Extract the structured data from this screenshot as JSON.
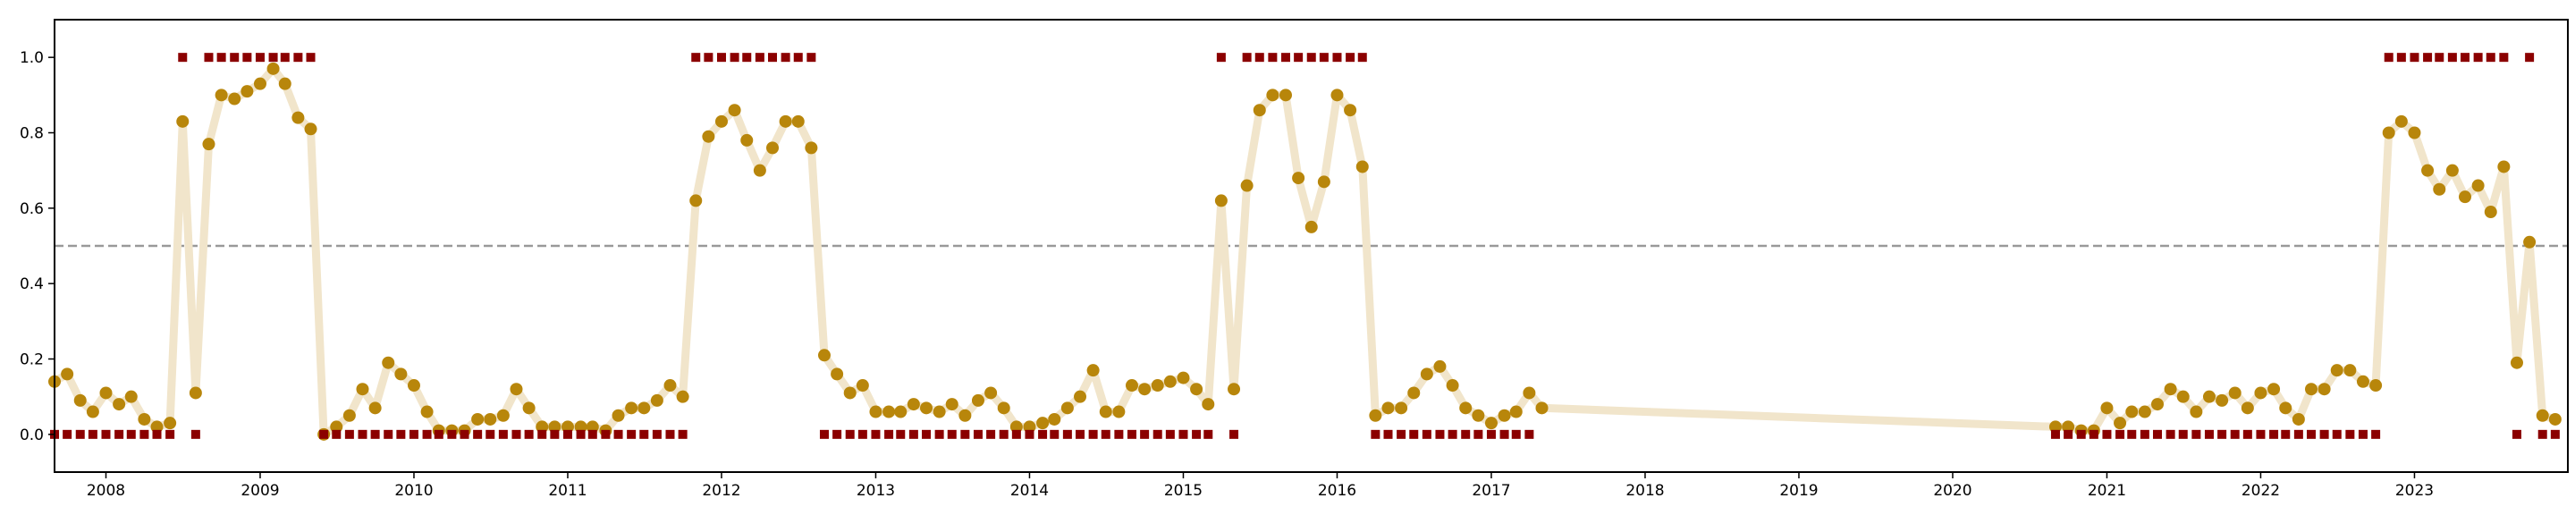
{
  "chart_data": {
    "type": "scatter",
    "title": "",
    "xlabel": "",
    "ylabel": "",
    "x_axis": "date",
    "xlim": [
      "2007-09-01",
      "2023-12-31"
    ],
    "ylim": [
      -0.1,
      1.1
    ],
    "y_ticks": [
      0.0,
      0.2,
      0.4,
      0.6,
      0.8,
      1.0
    ],
    "y_tick_labels": [
      "0.0",
      "0.2",
      "0.4",
      "0.6",
      "0.8",
      "1.0"
    ],
    "x_tick_labels": [
      "2008",
      "2009",
      "2010",
      "2011",
      "2012",
      "2013",
      "2014",
      "2015",
      "2016",
      "2017",
      "2018",
      "2019",
      "2020",
      "2021",
      "2022",
      "2023"
    ],
    "threshold": 0.5,
    "grid": false,
    "legend": "none",
    "colors": {
      "probability_line": "#f1e5cb",
      "probability_points": "#b8860b",
      "label_markers": "#8b0000",
      "threshold_line": "#999999",
      "axes": "#000000"
    },
    "series": [
      {
        "role": "probability",
        "style": "line-and-points",
        "x": [
          "2007-09-01",
          "2007-10-01",
          "2007-11-01",
          "2007-12-01",
          "2008-01-01",
          "2008-02-01",
          "2008-03-01",
          "2008-04-01",
          "2008-05-01",
          "2008-06-01",
          "2008-07-01",
          "2008-08-01",
          "2008-09-01",
          "2008-10-01",
          "2008-11-01",
          "2008-12-01",
          "2009-01-01",
          "2009-02-01",
          "2009-03-01",
          "2009-04-01",
          "2009-05-01",
          "2009-06-01",
          "2009-07-01",
          "2009-08-01",
          "2009-09-01",
          "2009-10-01",
          "2009-11-01",
          "2009-12-01",
          "2010-01-01",
          "2010-02-01",
          "2010-03-01",
          "2010-04-01",
          "2010-05-01",
          "2010-06-01",
          "2010-07-01",
          "2010-08-01",
          "2010-09-01",
          "2010-10-01",
          "2010-11-01",
          "2010-12-01",
          "2011-01-01",
          "2011-02-01",
          "2011-03-01",
          "2011-04-01",
          "2011-05-01",
          "2011-06-01",
          "2011-07-01",
          "2011-08-01",
          "2011-09-01",
          "2011-10-01",
          "2011-11-01",
          "2011-12-01",
          "2012-01-01",
          "2012-02-01",
          "2012-03-01",
          "2012-04-01",
          "2012-05-01",
          "2012-06-01",
          "2012-07-01",
          "2012-08-01",
          "2012-09-01",
          "2012-10-01",
          "2012-11-01",
          "2012-12-01",
          "2013-01-01",
          "2013-02-01",
          "2013-03-01",
          "2013-04-01",
          "2013-05-01",
          "2013-06-01",
          "2013-07-01",
          "2013-08-01",
          "2013-09-01",
          "2013-10-01",
          "2013-11-01",
          "2013-12-01",
          "2014-01-01",
          "2014-02-01",
          "2014-03-01",
          "2014-04-01",
          "2014-05-01",
          "2014-06-01",
          "2014-07-01",
          "2014-08-01",
          "2014-09-01",
          "2014-10-01",
          "2014-11-01",
          "2014-12-01",
          "2015-01-01",
          "2015-02-01",
          "2015-03-01",
          "2015-04-01",
          "2015-05-01",
          "2015-06-01",
          "2015-07-01",
          "2015-08-01",
          "2015-09-01",
          "2015-10-01",
          "2015-11-01",
          "2015-12-01",
          "2016-01-01",
          "2016-02-01",
          "2016-03-01",
          "2016-04-01",
          "2016-05-01",
          "2016-06-01",
          "2016-07-01",
          "2016-08-01",
          "2016-09-01",
          "2016-10-01",
          "2016-11-01",
          "2016-12-01",
          "2017-01-01",
          "2017-02-01",
          "2017-03-01",
          "2017-04-01",
          "2017-05-01",
          "2020-09-01",
          "2020-10-01",
          "2020-11-01",
          "2020-12-01",
          "2021-01-01",
          "2021-02-01",
          "2021-03-01",
          "2021-04-01",
          "2021-05-01",
          "2021-06-01",
          "2021-07-01",
          "2021-08-01",
          "2021-09-01",
          "2021-10-01",
          "2021-11-01",
          "2021-12-01",
          "2022-01-01",
          "2022-02-01",
          "2022-03-01",
          "2022-04-01",
          "2022-05-01",
          "2022-06-01",
          "2022-07-01",
          "2022-08-01",
          "2022-09-01",
          "2022-10-01",
          "2022-11-01",
          "2022-12-01",
          "2023-01-01",
          "2023-02-01",
          "2023-03-01",
          "2023-04-01",
          "2023-05-01",
          "2023-06-01",
          "2023-07-01",
          "2023-08-01",
          "2023-09-01",
          "2023-10-01",
          "2023-11-01",
          "2023-12-01"
        ],
        "y": [
          0.14,
          0.16,
          0.09,
          0.06,
          0.11,
          0.08,
          0.1,
          0.04,
          0.02,
          0.03,
          0.83,
          0.11,
          0.77,
          0.9,
          0.89,
          0.91,
          0.93,
          0.97,
          0.93,
          0.84,
          0.81,
          0.0,
          0.02,
          0.05,
          0.12,
          0.07,
          0.19,
          0.16,
          0.13,
          0.06,
          0.01,
          0.01,
          0.01,
          0.04,
          0.04,
          0.05,
          0.12,
          0.07,
          0.02,
          0.02,
          0.02,
          0.02,
          0.02,
          0.01,
          0.05,
          0.07,
          0.07,
          0.09,
          0.13,
          0.1,
          0.62,
          0.79,
          0.83,
          0.86,
          0.78,
          0.7,
          0.76,
          0.83,
          0.83,
          0.76,
          0.21,
          0.16,
          0.11,
          0.13,
          0.06,
          0.06,
          0.06,
          0.08,
          0.07,
          0.06,
          0.08,
          0.05,
          0.09,
          0.11,
          0.07,
          0.02,
          0.02,
          0.03,
          0.04,
          0.07,
          0.1,
          0.17,
          0.06,
          0.06,
          0.13,
          0.12,
          0.13,
          0.14,
          0.15,
          0.12,
          0.08,
          0.62,
          0.12,
          0.66,
          0.86,
          0.9,
          0.9,
          0.68,
          0.55,
          0.67,
          0.9,
          0.86,
          0.71,
          0.05,
          0.07,
          0.07,
          0.11,
          0.16,
          0.18,
          0.13,
          0.07,
          0.05,
          0.03,
          0.05,
          0.06,
          0.11,
          0.07,
          0.02,
          0.02,
          0.01,
          0.01,
          0.07,
          0.03,
          0.06,
          0.06,
          0.08,
          0.12,
          0.1,
          0.06,
          0.1,
          0.09,
          0.11,
          0.07,
          0.11,
          0.12,
          0.07,
          0.04,
          0.12,
          0.12,
          0.17,
          0.17,
          0.14,
          0.13,
          0.8,
          0.83,
          0.8,
          0.7,
          0.65,
          0.7,
          0.63,
          0.66,
          0.59,
          0.71,
          0.19,
          0.51,
          0.05,
          0.04
        ]
      },
      {
        "role": "label",
        "style": "square-markers",
        "x": [
          "2007-09-01",
          "2007-10-01",
          "2007-11-01",
          "2007-12-01",
          "2008-01-01",
          "2008-02-01",
          "2008-03-01",
          "2008-04-01",
          "2008-05-01",
          "2008-06-01",
          "2008-07-01",
          "2008-08-01",
          "2008-09-01",
          "2008-10-01",
          "2008-11-01",
          "2008-12-01",
          "2009-01-01",
          "2009-02-01",
          "2009-03-01",
          "2009-04-01",
          "2009-05-01",
          "2009-06-01",
          "2009-07-01",
          "2009-08-01",
          "2009-09-01",
          "2009-10-01",
          "2009-11-01",
          "2009-12-01",
          "2010-01-01",
          "2010-02-01",
          "2010-03-01",
          "2010-04-01",
          "2010-05-01",
          "2010-06-01",
          "2010-07-01",
          "2010-08-01",
          "2010-09-01",
          "2010-10-01",
          "2010-11-01",
          "2010-12-01",
          "2011-01-01",
          "2011-02-01",
          "2011-03-01",
          "2011-04-01",
          "2011-05-01",
          "2011-06-01",
          "2011-07-01",
          "2011-08-01",
          "2011-09-01",
          "2011-10-01",
          "2011-11-01",
          "2011-12-01",
          "2012-01-01",
          "2012-02-01",
          "2012-03-01",
          "2012-04-01",
          "2012-05-01",
          "2012-06-01",
          "2012-07-01",
          "2012-08-01",
          "2012-09-01",
          "2012-10-01",
          "2012-11-01",
          "2012-12-01",
          "2013-01-01",
          "2013-02-01",
          "2013-03-01",
          "2013-04-01",
          "2013-05-01",
          "2013-06-01",
          "2013-07-01",
          "2013-08-01",
          "2013-09-01",
          "2013-10-01",
          "2013-11-01",
          "2013-12-01",
          "2014-01-01",
          "2014-02-01",
          "2014-03-01",
          "2014-04-01",
          "2014-05-01",
          "2014-06-01",
          "2014-07-01",
          "2014-08-01",
          "2014-09-01",
          "2014-10-01",
          "2014-11-01",
          "2014-12-01",
          "2015-01-01",
          "2015-02-01",
          "2015-03-01",
          "2015-04-01",
          "2015-05-01",
          "2015-06-01",
          "2015-07-01",
          "2015-08-01",
          "2015-09-01",
          "2015-10-01",
          "2015-11-01",
          "2015-12-01",
          "2016-01-01",
          "2016-02-01",
          "2016-03-01",
          "2016-04-01",
          "2016-05-01",
          "2016-06-01",
          "2016-07-01",
          "2016-08-01",
          "2016-09-01",
          "2016-10-01",
          "2016-11-01",
          "2016-12-01",
          "2017-01-01",
          "2017-02-01",
          "2017-03-01",
          "2017-04-01",
          "2020-09-01",
          "2020-10-01",
          "2020-11-01",
          "2020-12-01",
          "2021-01-01",
          "2021-02-01",
          "2021-03-01",
          "2021-04-01",
          "2021-05-01",
          "2021-06-01",
          "2021-07-01",
          "2021-08-01",
          "2021-09-01",
          "2021-10-01",
          "2021-11-01",
          "2021-12-01",
          "2022-01-01",
          "2022-02-01",
          "2022-03-01",
          "2022-04-01",
          "2022-05-01",
          "2022-06-01",
          "2022-07-01",
          "2022-08-01",
          "2022-09-01",
          "2022-10-01",
          "2022-11-01",
          "2022-12-01",
          "2023-01-01",
          "2023-02-01",
          "2023-03-01",
          "2023-04-01",
          "2023-05-01",
          "2023-06-01",
          "2023-07-01",
          "2023-08-01",
          "2023-09-01",
          "2023-10-01",
          "2023-11-01",
          "2023-12-01"
        ],
        "y": [
          0,
          0,
          0,
          0,
          0,
          0,
          0,
          0,
          0,
          0,
          1,
          0,
          1,
          1,
          1,
          1,
          1,
          1,
          1,
          1,
          1,
          0,
          0,
          0,
          0,
          0,
          0,
          0,
          0,
          0,
          0,
          0,
          0,
          0,
          0,
          0,
          0,
          0,
          0,
          0,
          0,
          0,
          0,
          0,
          0,
          0,
          0,
          0,
          0,
          0,
          1,
          1,
          1,
          1,
          1,
          1,
          1,
          1,
          1,
          1,
          0,
          0,
          0,
          0,
          0,
          0,
          0,
          0,
          0,
          0,
          0,
          0,
          0,
          0,
          0,
          0,
          0,
          0,
          0,
          0,
          0,
          0,
          0,
          0,
          0,
          0,
          0,
          0,
          0,
          0,
          0,
          1,
          0,
          1,
          1,
          1,
          1,
          1,
          1,
          1,
          1,
          1,
          1,
          0,
          0,
          0,
          0,
          0,
          0,
          0,
          0,
          0,
          0,
          0,
          0,
          0,
          0,
          0,
          0,
          0,
          0,
          0,
          0,
          0,
          0,
          0,
          0,
          0,
          0,
          0,
          0,
          0,
          0,
          0,
          0,
          0,
          0,
          0,
          0,
          0,
          0,
          0,
          1,
          1,
          1,
          1,
          1,
          1,
          1,
          1,
          1,
          1,
          0,
          1,
          0,
          0
        ]
      }
    ]
  }
}
